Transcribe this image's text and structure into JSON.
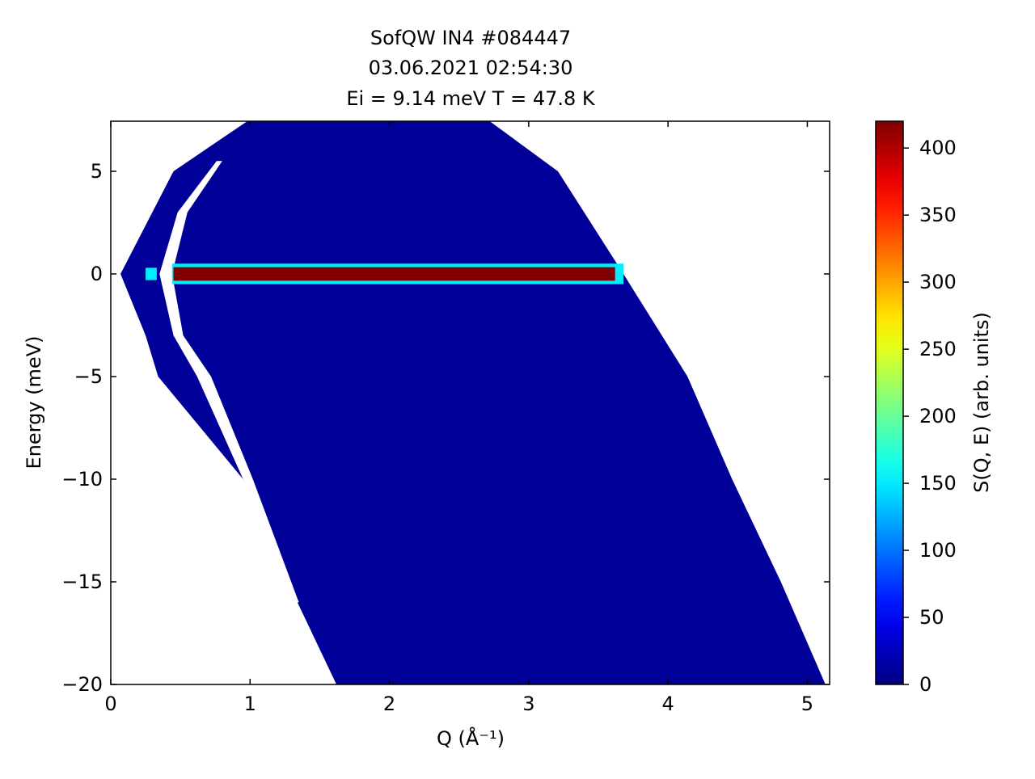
{
  "chart_data": {
    "type": "heatmap",
    "title": [
      "SofQW IN4 #084447",
      "03.06.2021 02:54:30",
      "Ei = 9.14 meV T = 47.8 K"
    ],
    "xlabel": "Q (Å⁻¹)",
    "ylabel": "Energy (meV)",
    "xlim": [
      0,
      5.16
    ],
    "ylim": [
      -20,
      7.44
    ],
    "xticks": [
      0,
      1,
      2,
      3,
      4,
      5
    ],
    "yticks": [
      {
        "value": -20,
        "label": "−20"
      },
      {
        "value": -15,
        "label": "−15"
      },
      {
        "value": -10,
        "label": "−10"
      },
      {
        "value": -5,
        "label": "−5"
      },
      0,
      5
    ],
    "colormap": "jet",
    "colorbar": {
      "label": "S(Q, E) (arb. units)",
      "clim": [
        0,
        420
      ],
      "ticks": [
        0,
        50,
        100,
        150,
        200,
        250,
        300,
        350,
        400
      ]
    },
    "regions": [
      {
        "q": [
          0.98,
          2.72,
          3.21,
          3.68,
          4.14,
          4.46,
          4.81,
          5.13,
          1.62,
          1.27,
          0.95,
          0.34,
          0.25,
          0.07,
          0.45
        ],
        "e": [
          7.44,
          7.44,
          5,
          0,
          -5,
          -10,
          -15,
          -20,
          -20,
          -15,
          -10,
          -5,
          -3,
          0,
          5
        ],
        "value": 10
      },
      {
        "q": [
          0.76,
          0.48,
          0.35,
          0.45,
          0.62,
          0.95,
          1.3,
          1.35,
          1.02,
          0.72,
          0.52,
          0.44,
          0.55,
          0.8
        ],
        "e": [
          5.5,
          3,
          0,
          -3,
          -5,
          -10,
          -16,
          -16,
          -10,
          -5,
          -3,
          0,
          3,
          5.5
        ],
        "value": null
      },
      {
        "q": [
          0.25,
          0.33,
          0.33,
          0.25
        ],
        "e": [
          0.3,
          0.3,
          -0.3,
          -0.3
        ],
        "value": 150
      },
      {
        "q": [
          0.44,
          3.68,
          3.68,
          0.44
        ],
        "e": [
          0.5,
          0.5,
          -0.5,
          -0.5
        ],
        "value": 150
      },
      {
        "q": [
          0.45,
          3.62,
          3.62,
          0.45
        ],
        "e": [
          0.33,
          0.33,
          -0.33,
          -0.33
        ],
        "value": 420
      }
    ]
  }
}
